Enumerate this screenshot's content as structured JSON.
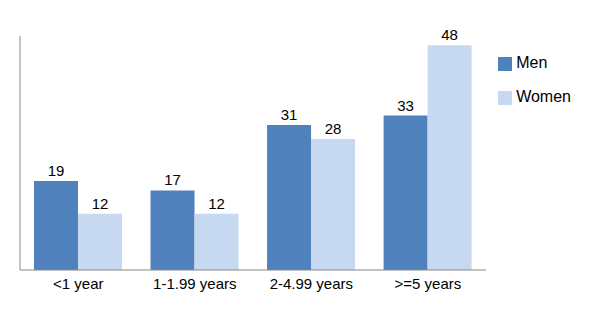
{
  "chart_data": {
    "type": "bar",
    "categories": [
      "<1 year",
      "1-1.99 years",
      "2-4.99 years",
      ">=5 years"
    ],
    "series": [
      {
        "name": "Men",
        "color": "#4f81bd",
        "values": [
          19,
          17,
          31,
          33
        ]
      },
      {
        "name": "Women",
        "color": "#c6d9f1",
        "values": [
          12,
          12,
          28,
          48
        ]
      }
    ],
    "ylim": [
      0,
      50
    ],
    "data_labels": true,
    "legend": "upper right",
    "tick_labels": "x",
    "grid": false
  }
}
